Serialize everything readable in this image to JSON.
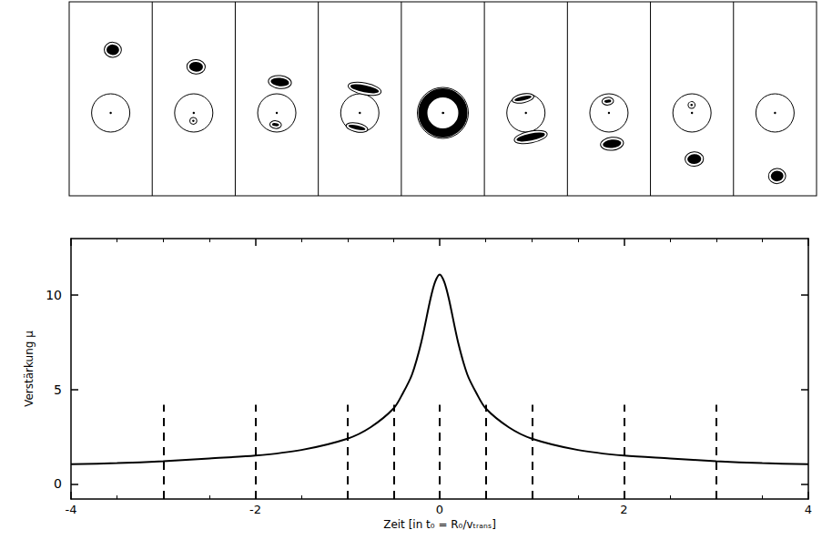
{
  "chart_data": {
    "type": "line",
    "x_label": "Zeit [in t₀ = R₀/vₜᵣₐₙₛ]",
    "y_label": "Verstärkung μ",
    "color": "#000000",
    "x": [
      -4,
      -3.5,
      -3,
      -2.5,
      -2,
      -1.5,
      -1,
      -0.75,
      -0.5,
      -0.4,
      -0.3,
      -0.2,
      -0.1,
      -0.05,
      0,
      0.05,
      0.1,
      0.2,
      0.3,
      0.4,
      0.5,
      0.75,
      1,
      1.5,
      2,
      2.5,
      3,
      3.5,
      4
    ],
    "values": [
      1.05,
      1.1,
      1.2,
      1.35,
      1.5,
      1.8,
      2.4,
      3.0,
      4.0,
      4.8,
      5.8,
      7.5,
      9.8,
      10.7,
      11.1,
      10.7,
      9.8,
      7.5,
      5.8,
      4.8,
      4.0,
      3.0,
      2.4,
      1.8,
      1.5,
      1.35,
      1.2,
      1.1,
      1.05
    ],
    "xlim": [
      -4,
      4
    ],
    "xticks": [
      -4,
      -2,
      0,
      2,
      4
    ],
    "ylim": [
      -0.8,
      13
    ],
    "yticks": [
      0,
      5,
      10
    ],
    "vlines": [
      -3,
      -2,
      -1,
      -0.5,
      0,
      0.5,
      1,
      2,
      3
    ],
    "vline_top": 4.2,
    "line_style": "solid",
    "grid": false
  }
}
